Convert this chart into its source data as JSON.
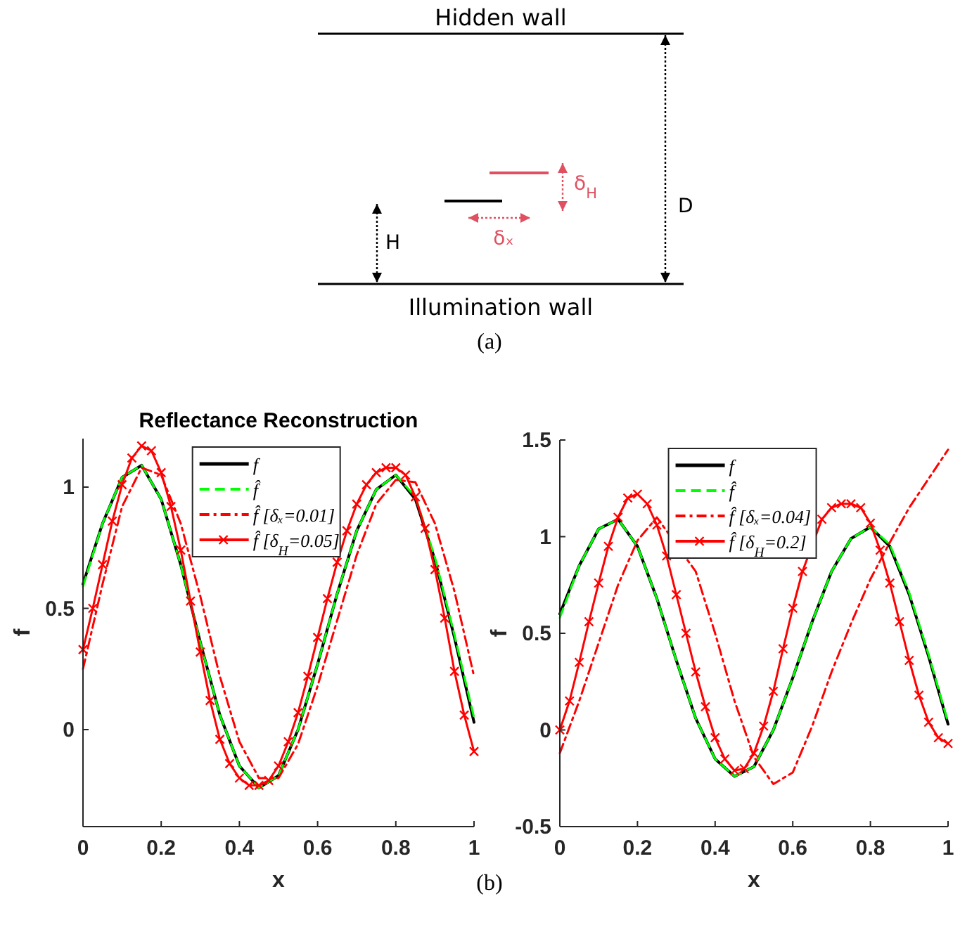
{
  "chart_data": [
    {
      "type": "other",
      "annotations": [
        "Hidden wall",
        "Illumination wall",
        "D",
        "H",
        "δ$_{H}$",
        "δₓ",
        "(a)",
        "(b)"
      ]
    },
    {
      "type": "line",
      "title": "Reflectance Reconstruction",
      "xlabel": "x",
      "ylabel": "f",
      "xlim": [
        0,
        1
      ],
      "ylim": [
        -0.4,
        1.2
      ],
      "xticks": [
        0,
        0.2,
        0.4,
        0.6,
        0.8,
        1
      ],
      "yticks": [
        0,
        0.5,
        1
      ],
      "grid": false,
      "legend": "top",
      "series": [
        {
          "name": "f",
          "color": "#000000",
          "line_style": "solid",
          "marker": "none",
          "x": [
            0,
            0.05,
            0.1,
            0.15,
            0.2,
            0.25,
            0.3,
            0.35,
            0.4,
            0.45,
            0.5,
            0.55,
            0.6,
            0.65,
            0.7,
            0.75,
            0.8,
            0.85,
            0.9,
            0.95,
            1
          ],
          "values": [
            0.6,
            0.85,
            1.04,
            1.09,
            0.95,
            0.68,
            0.36,
            0.06,
            -0.15,
            -0.24,
            -0.19,
            0.0,
            0.27,
            0.56,
            0.82,
            0.99,
            1.05,
            0.95,
            0.7,
            0.38,
            0.03
          ]
        },
        {
          "name": "f̂",
          "color": "#00ff00",
          "line_style": "dashed",
          "marker": "none",
          "x": [
            0,
            0.05,
            0.1,
            0.15,
            0.2,
            0.25,
            0.3,
            0.35,
            0.4,
            0.45,
            0.5,
            0.55,
            0.6,
            0.65,
            0.7,
            0.75,
            0.8,
            0.85,
            0.9,
            0.95,
            1
          ],
          "values": [
            0.59,
            0.85,
            1.04,
            1.09,
            0.95,
            0.68,
            0.36,
            0.06,
            -0.15,
            -0.24,
            -0.19,
            0.0,
            0.27,
            0.56,
            0.82,
            0.99,
            1.05,
            0.96,
            0.71,
            0.39,
            0.05
          ]
        },
        {
          "name": "f̂ [δₓ=0.01]",
          "color": "#ff0000",
          "line_style": "dashdot",
          "marker": "none",
          "x": [
            0,
            0.05,
            0.1,
            0.15,
            0.2,
            0.25,
            0.3,
            0.35,
            0.4,
            0.45,
            0.5,
            0.55,
            0.6,
            0.65,
            0.7,
            0.75,
            0.8,
            0.85,
            0.9,
            0.95,
            1
          ],
          "values": [
            0.25,
            0.6,
            0.92,
            1.08,
            1.05,
            0.85,
            0.55,
            0.22,
            -0.05,
            -0.2,
            -0.2,
            -0.06,
            0.18,
            0.45,
            0.72,
            0.93,
            1.03,
            1.02,
            0.85,
            0.57,
            0.22
          ]
        },
        {
          "name": "f̂ [δ$_{H}$=0.05]",
          "color": "#ff0000",
          "line_style": "solid",
          "marker": "cross",
          "x": [
            0,
            0.025,
            0.05,
            0.075,
            0.1,
            0.125,
            0.15,
            0.175,
            0.2,
            0.225,
            0.25,
            0.275,
            0.3,
            0.325,
            0.35,
            0.375,
            0.4,
            0.425,
            0.45,
            0.475,
            0.5,
            0.525,
            0.55,
            0.575,
            0.6,
            0.625,
            0.65,
            0.675,
            0.7,
            0.725,
            0.75,
            0.775,
            0.8,
            0.825,
            0.85,
            0.875,
            0.9,
            0.925,
            0.95,
            0.975,
            1
          ],
          "values": [
            0.33,
            0.5,
            0.68,
            0.86,
            1.01,
            1.12,
            1.17,
            1.15,
            1.06,
            0.92,
            0.74,
            0.53,
            0.32,
            0.12,
            -0.04,
            -0.14,
            -0.2,
            -0.23,
            -0.23,
            -0.21,
            -0.15,
            -0.05,
            0.07,
            0.22,
            0.38,
            0.54,
            0.69,
            0.82,
            0.93,
            1.01,
            1.06,
            1.08,
            1.08,
            1.05,
            0.96,
            0.83,
            0.66,
            0.46,
            0.24,
            0.06,
            -0.09
          ]
        }
      ]
    },
    {
      "type": "line",
      "xlabel": "x",
      "ylabel": "f",
      "xlim": [
        0,
        1
      ],
      "ylim": [
        -0.5,
        1.5
      ],
      "xticks": [
        0,
        0.2,
        0.4,
        0.6,
        0.8,
        1
      ],
      "yticks": [
        -0.5,
        0,
        0.5,
        1,
        1.5
      ],
      "grid": false,
      "legend": "top",
      "series": [
        {
          "name": "f",
          "color": "#000000",
          "line_style": "solid",
          "marker": "none",
          "x": [
            0,
            0.05,
            0.1,
            0.15,
            0.2,
            0.25,
            0.3,
            0.35,
            0.4,
            0.45,
            0.5,
            0.55,
            0.6,
            0.65,
            0.7,
            0.75,
            0.8,
            0.85,
            0.9,
            0.95,
            1
          ],
          "values": [
            0.6,
            0.85,
            1.04,
            1.09,
            0.95,
            0.68,
            0.36,
            0.06,
            -0.15,
            -0.24,
            -0.19,
            0.0,
            0.27,
            0.56,
            0.82,
            0.99,
            1.05,
            0.95,
            0.7,
            0.38,
            0.03
          ]
        },
        {
          "name": "f̂",
          "color": "#00ff00",
          "line_style": "dashed",
          "marker": "none",
          "x": [
            0,
            0.05,
            0.1,
            0.15,
            0.2,
            0.25,
            0.3,
            0.35,
            0.4,
            0.45,
            0.5,
            0.55,
            0.6,
            0.65,
            0.7,
            0.75,
            0.8,
            0.85,
            0.9,
            0.95,
            1
          ],
          "values": [
            0.58,
            0.85,
            1.04,
            1.09,
            0.95,
            0.68,
            0.36,
            0.06,
            -0.15,
            -0.24,
            -0.19,
            0.0,
            0.27,
            0.56,
            0.82,
            0.99,
            1.05,
            0.96,
            0.71,
            0.39,
            0.04
          ]
        },
        {
          "name": "f̂ [δₓ=0.04]",
          "color": "#ff0000",
          "line_style": "dashdot",
          "marker": "none",
          "x": [
            0,
            0.05,
            0.1,
            0.15,
            0.2,
            0.25,
            0.3,
            0.35,
            0.4,
            0.45,
            0.5,
            0.55,
            0.6,
            0.65,
            0.7,
            0.75,
            0.8,
            0.85,
            0.9,
            0.95,
            1
          ],
          "values": [
            -0.12,
            0.15,
            0.45,
            0.75,
            0.98,
            1.1,
            null,
            0.82,
            0.5,
            0.15,
            -0.14,
            -0.28,
            -0.22,
            0.02,
            0.3,
            0.55,
            0.78,
            0.97,
            1.15,
            1.3,
            1.45
          ]
        },
        {
          "name": "f̂ [δ$_{H}$=0.2]",
          "color": "#ff0000",
          "line_style": "solid",
          "marker": "cross",
          "x": [
            0,
            0.025,
            0.05,
            0.075,
            0.1,
            0.125,
            0.15,
            0.175,
            0.2,
            0.225,
            0.25,
            0.275,
            0.3,
            0.325,
            0.35,
            0.375,
            0.4,
            0.425,
            0.45,
            0.475,
            0.5,
            0.525,
            0.55,
            0.575,
            0.6,
            0.625,
            0.65,
            0.675,
            0.7,
            0.725,
            0.75,
            0.775,
            0.8,
            0.825,
            0.85,
            0.875,
            0.9,
            0.925,
            0.95,
            0.975,
            1
          ],
          "values": [
            0.0,
            0.15,
            0.35,
            0.56,
            0.76,
            0.95,
            1.1,
            1.2,
            1.22,
            1.17,
            1.06,
            0.9,
            0.7,
            0.5,
            0.3,
            0.12,
            -0.04,
            -0.15,
            -0.21,
            -0.2,
            -0.12,
            0.02,
            0.2,
            0.42,
            0.63,
            0.82,
            null,
            1.09,
            1.15,
            1.17,
            1.17,
            1.15,
            1.07,
            0.93,
            0.76,
            0.56,
            0.36,
            0.18,
            0.04,
            -0.04,
            -0.07
          ]
        }
      ]
    }
  ]
}
